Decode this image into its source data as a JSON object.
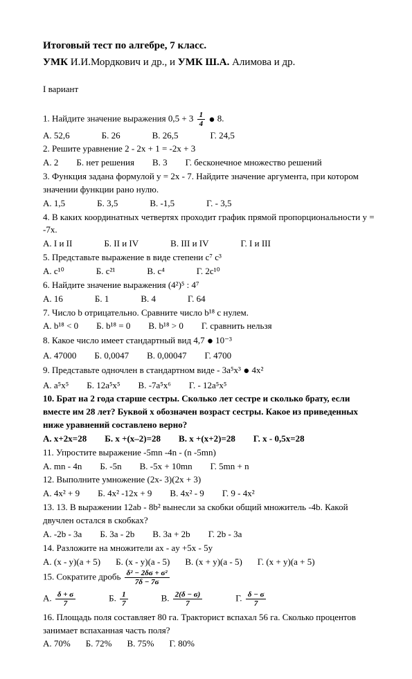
{
  "title": "Итоговый тест по алгебре, 7 класс.",
  "subtitle_bold1": "УМК",
  "subtitle_plain1": " И.И.Мордкович и др., и ",
  "subtitle_bold2": "УМК Ш.А.",
  "subtitle_plain2": " Алимова и др.",
  "variant": "I вариант",
  "q1": "1. Найдите значение выражения 0,5 + 3 ",
  "q1_tail": " 8.",
  "q1_frac_num": "1",
  "q1_frac_den": "4",
  "a1a": "А.  52,6",
  "a1b": "Б. 26",
  "a1c": "В. 26,5",
  "a1d": "Г. 24,5",
  "q2": "2.  Решите уравнение  2 - 2x + 1 = -2x + 3",
  "a2a": "А. 2",
  "a2b": "Б. нет решения",
  "a2c": "В. 3",
  "a2d": "Г. бесконечное множество решений",
  "q3": "3. Функция задана формулой y = 2x - 7. Найдите значение аргумента, при котором значении функции рано нулю.",
  "a3a": "А. 1,5",
  "a3b": "Б. 3,5",
  "a3c": "В. -1,5",
  "a3d": "Г. - 3,5",
  "q4": "4. В каких координатных четвертях проходит график прямой пропорциональности y = -7x.",
  "a4a": "А.  I и II",
  "a4b": "Б. II и  IV",
  "a4c": "В.  III и IV",
  "a4d": "Г.  I и III",
  "q5": "5. Представьте выражение в виде степени  c⁷ c³",
  "a5a": "А.  c¹⁰",
  "a5b": "Б.  c²¹",
  "a5c": "В.  c⁴",
  "a5d": "Г.  2c¹⁰",
  "q6": "6.  Найдите значение выражения (4²)⁵ : 4⁷",
  "a6a": "А. 16",
  "a6b": "Б. 1",
  "a6c": "В. 4",
  "a6d": "Г. 64",
  "q7": "7. Число b отрицательно. Сравните число b¹⁸ c нулем.",
  "a7a": "А.  b¹⁸ < 0",
  "a7b": "Б.  b¹⁸ = 0",
  "a7c": "В.  b¹⁸ > 0",
  "a7d": "Г. сравнить нельзя",
  "q8_a": "8. Какое число имеет стандартный вид 4,7 ",
  "q8_b": " 10⁻³",
  "a8a": "А.  47000",
  "a8b": "Б. 0,0047",
  "a8c": "В. 0,00047",
  "a8d": "Г. 4700",
  "q9_a": "9. Представьте одночлен в стандартном виде - 3a⁵x³ ",
  "q9_b": " 4x²",
  "a9a": "А. a⁵x⁵",
  "a9b": "Б. 12a⁵x⁵",
  "a9c": "В. -7a⁵x⁶",
  "a9d": "Г. - 12a⁵x⁵",
  "q10": "10. Брат на 2 года старше сестры. Сколько лет сестре и сколько брату, если вместе им 28 лет? Буквой x обозначен возраст сестры. Какое из приведенных ниже уравнений составлено верно?",
  "a10a": "А.  x+2x=28",
  "a10b": "Б. x +(x–2)=28",
  "a10c": "В. x +(x+2)=28",
  "a10d": "Г. x - 0,5x=28",
  "q11": "11. Упростите выражение -5mn -4n - (n -5mn)",
  "a11a": "А.  mn - 4n",
  "a11b": "Б.  -5n",
  "a11c": "В.  -5x + 10mn",
  "a11d": "Г.  5mn + n",
  "q12": "12.  Выполните умножение  (2x- 3)(2x + 3)",
  "a12a": "А.  4x² + 9",
  "a12b": "Б.  4x² -12x + 9",
  "a12c": "В.  4x² - 9",
  "a12d": "Г.  9 - 4x²",
  "q13": "13. 13. В выражении 12ab - 8b²  вынесли за скобки общий множитель -4b.  Какой двучлен остался в скобках?",
  "a13a": "А. -2b - 3a",
  "a13b": "Б. 3a - 2b",
  "a13c": "В. 3a + 2b",
  "a13d": "Г. 2b - 3a",
  "q14": "14. Разложите на множители   ax - ay +5x - 5y",
  "a14a": "А. (x - y)(a + 5)",
  "a14b": "Б. (x - y)(a - 5)",
  "a14c": "В. (x + y)(a - 5)",
  "a14d": "Г.  (x + y)(a + 5)",
  "q15": "15. Сократите дробь ",
  "q15_num": "δ² − 2δϭ + ϭ²",
  "q15_den": "7δ − 7ϭ",
  "a15a": "А.  ",
  "a15a_num": "δ + ϭ",
  "a15a_den": "7",
  "a15b": "Б.  ",
  "a15b_num": "1",
  "a15b_den": "7",
  "a15c": "В.  ",
  "a15c_num": "2(δ − ϭ)",
  "a15c_den": "7",
  "a15d": "Г.  ",
  "a15d_num": "δ − ϭ",
  "a15d_den": "7",
  "q16": "16. Площадь поля составляет 80 га. Тракторист вспахал 56 га. Сколько процентов занимает вспаханная часть поля?",
  "a16a": "А.  70%",
  "a16b": "Б. 72%",
  "a16c": "В. 75%",
  "a16d": "Г. 80%"
}
